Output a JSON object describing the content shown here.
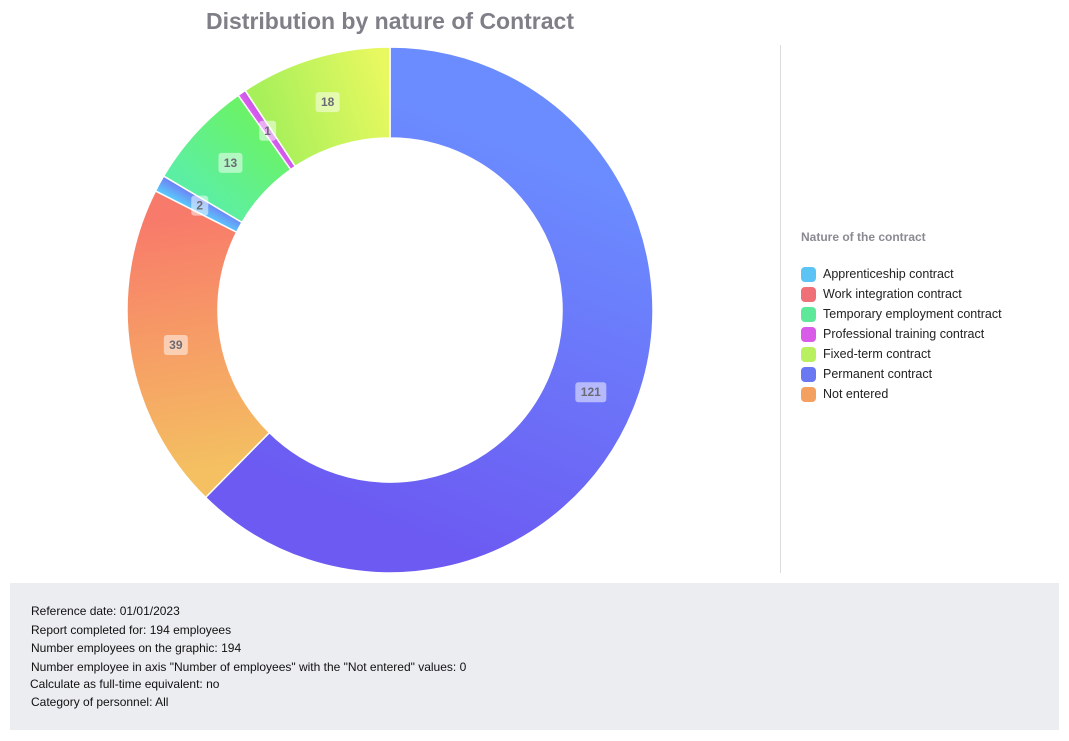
{
  "chart_data": {
    "type": "donut",
    "title": "Distribution by nature of Contract",
    "legend_title": "Nature of the contract",
    "legend_position": "right",
    "series": [
      {
        "name": "Permanent contract",
        "value": 121,
        "colors": [
          "#6b8cff",
          "#6c5af2"
        ]
      },
      {
        "name": "Not entered",
        "value": 39,
        "colors": [
          "#f4c061",
          "#f87a6a"
        ]
      },
      {
        "name": "Apprenticeship contract",
        "value": 2,
        "colors": [
          "#5ac8fa",
          "#6e84f6"
        ]
      },
      {
        "name": "Temporary employment contract",
        "value": 13,
        "colors": [
          "#5cefa4",
          "#6af26a"
        ]
      },
      {
        "name": "Professional training contract",
        "value": 1,
        "colors": [
          "#e05cf0",
          "#c55ae8"
        ]
      },
      {
        "name": "Fixed-term contract",
        "value": 18,
        "colors": [
          "#a8f05a",
          "#e8f860"
        ]
      }
    ],
    "legend": [
      {
        "label": "Apprenticeship contract",
        "color": "#5cc4f4"
      },
      {
        "label": "Work integration contract",
        "color": "#f07078"
      },
      {
        "label": "Temporary employment contract",
        "color": "#5ee89a"
      },
      {
        "label": "Professional training contract",
        "color": "#d85ce8"
      },
      {
        "label": "Fixed-term contract",
        "color": "#b8f060"
      },
      {
        "label": "Permanent contract",
        "color": "#6a78f2"
      },
      {
        "label": "Not entered",
        "color": "#f4a060"
      }
    ]
  },
  "info": {
    "lines": [
      "Reference date: 01/01/2023",
      "Report completed for: 194 employees",
      "Number employees on the graphic: 194",
      "Number employee in axis \"Number of employees\" with the \"Not entered\" values: 0",
      "Calculate as full-time equivalent: no",
      "Category of personnel: All"
    ]
  }
}
